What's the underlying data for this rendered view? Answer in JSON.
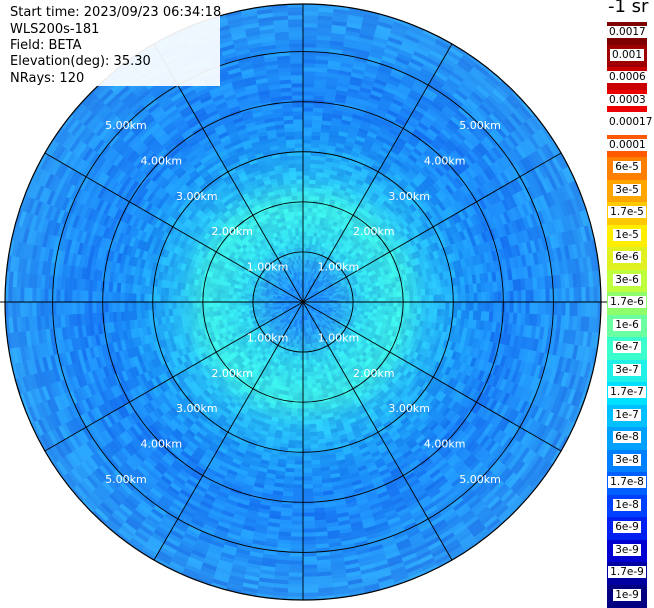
{
  "info": {
    "start_time": "Start time: 2023/09/23 06:34:18",
    "instrument": "WLS200s-181",
    "field": "Field: BETA",
    "elevation": "Elevation(deg): 35.30",
    "nrays": "NRays: 120"
  },
  "colorbar": {
    "title": "-1 sr",
    "labels": [
      "0.0017",
      "0.001",
      "0.0006",
      "0.0003",
      "0.00017",
      "0.0001",
      "6e-5",
      "3e-5",
      "1.7e-5",
      "1e-5",
      "6e-6",
      "3e-6",
      "1.7e-6",
      "1e-6",
      "6e-7",
      "3e-7",
      "1.7e-7",
      "1e-7",
      "6e-8",
      "3e-8",
      "1.7e-8",
      "1e-8",
      "6e-9",
      "3e-9",
      "1.7e-9",
      "1e-9"
    ],
    "colors": [
      "#7f0000",
      "#9e0000",
      "#c80000",
      "#ec0000",
      "#ffffff",
      "#ff5a00",
      "#ff7f00",
      "#ffa500",
      "#ffc800",
      "#ffee00",
      "#e0f020",
      "#c0ff3e",
      "#8eff6a",
      "#6affa0",
      "#3affcd",
      "#20f0e6",
      "#00e0ff",
      "#00c0ff",
      "#00a0ff",
      "#0080ff",
      "#0060ff",
      "#0040ff",
      "#0020f0",
      "#0000d0",
      "#0000a0",
      "#000080"
    ]
  },
  "chart_data": {
    "type": "heatmap",
    "projection": "polar (PPI)",
    "nrays": 120,
    "elevation_deg": 35.3,
    "field": "BETA",
    "units": "-1 sr",
    "max_range_km": 5.95,
    "range_ring_labels": [
      "1.00km",
      "2.00km",
      "3.00km",
      "4.00km",
      "5.00km"
    ],
    "range_rings_km": [
      1,
      2,
      3,
      4,
      5
    ],
    "spokes_deg": [
      0,
      30,
      60,
      90,
      120,
      150,
      180,
      210,
      240,
      270,
      300,
      330
    ],
    "color_by_range": [
      {
        "range_km": 0.3,
        "color": "#1e90ff"
      },
      {
        "range_km": 0.8,
        "color": "#28a8f0"
      },
      {
        "range_km": 1.2,
        "color": "#30d8f0"
      },
      {
        "range_km": 2.0,
        "color": "#3ae6e6"
      },
      {
        "range_km": 2.5,
        "color": "#26bcf6"
      },
      {
        "range_km": 3.2,
        "color": "#1c9af8"
      },
      {
        "range_km": 4.0,
        "color": "#1a84f8"
      },
      {
        "range_km": 5.0,
        "color": "#2090f8"
      },
      {
        "range_km": 5.95,
        "color": "#2a96f4"
      }
    ]
  }
}
